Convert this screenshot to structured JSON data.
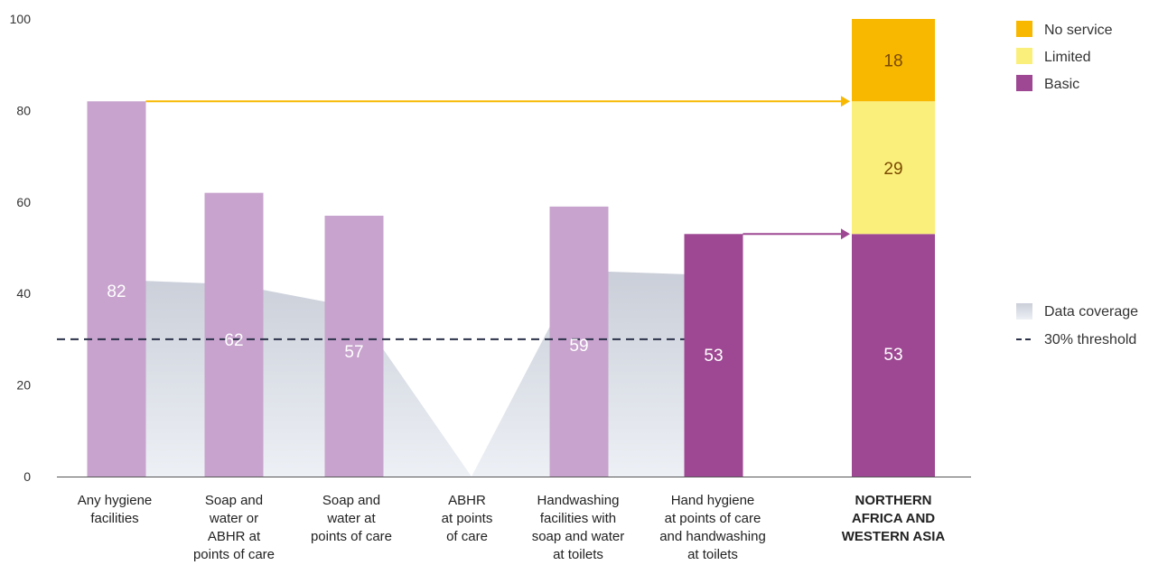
{
  "chart_data": {
    "type": "bar",
    "ylim": [
      0,
      100
    ],
    "yticks": [
      0,
      20,
      40,
      60,
      80,
      100
    ],
    "threshold": 30,
    "colors": {
      "light_bar": "#c7a3cd",
      "basic": "#9e4893",
      "limited": "#fbef7b",
      "no_service": "#f8b800",
      "coverage": "#c9ced8",
      "arrow_yellow": "#f8b800",
      "arrow_purple": "#9e4893",
      "threshold_line": "#2b3148"
    },
    "categories": [
      {
        "lines": [
          "Any hygiene",
          "facilities"
        ],
        "value": 82,
        "label": "82",
        "color": "light"
      },
      {
        "lines": [
          "Soap and",
          "water or",
          "ABHR at",
          "points of care"
        ],
        "value": 62,
        "label": "62",
        "color": "light"
      },
      {
        "lines": [
          "Soap and",
          "water at",
          "points of care"
        ],
        "value": 57,
        "label": "57",
        "color": "light"
      },
      {
        "lines": [
          "ABHR",
          "at points",
          "of care"
        ],
        "value": null,
        "label": "",
        "color": "light"
      },
      {
        "lines": [
          "Handwashing",
          "facilities with",
          "soap and water",
          "at toilets"
        ],
        "value": 59,
        "label": "59",
        "color": "light"
      },
      {
        "lines": [
          "Hand hygiene",
          "at points of care",
          "and handwashing",
          "at toilets"
        ],
        "value": 53,
        "label": "53",
        "color": "basic"
      }
    ],
    "coverage": [
      43,
      42,
      37,
      0,
      45,
      44
    ],
    "region": {
      "lines": [
        "NORTHERN",
        "AFRICA AND",
        "WESTERN ASIA"
      ],
      "segments": [
        {
          "name": "Basic",
          "value": 53,
          "label": "53"
        },
        {
          "name": "Limited",
          "value": 29,
          "label": "29"
        },
        {
          "name": "No service",
          "value": 18,
          "label": "18"
        }
      ]
    },
    "legend": {
      "no_service": "No service",
      "limited": "Limited",
      "basic": "Basic",
      "coverage": "Data coverage",
      "threshold": "30% threshold"
    }
  }
}
